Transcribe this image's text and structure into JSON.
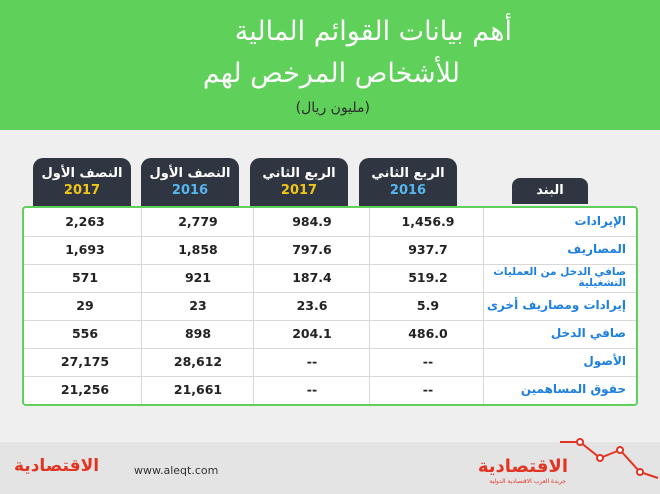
{
  "header": {
    "title_line1": "أهم بيانات القوائم المالية",
    "title_line2": "للأشخاص المرخص لهم",
    "unit": "(مليون ريال)"
  },
  "columns": [
    {
      "period": "النصف الأول",
      "year": "2017"
    },
    {
      "period": "النصف الأول",
      "year": "2016"
    },
    {
      "period": "الربع الثاني",
      "year": "2017"
    },
    {
      "period": "الربع الثاني",
      "year": "2016"
    }
  ],
  "item_header": "البند",
  "rows": [
    {
      "label": "الإيرادات",
      "values": [
        "2,263",
        "2,779",
        "984.9",
        "1,456.9"
      ]
    },
    {
      "label": "المصاريف",
      "values": [
        "1,693",
        "1,858",
        "797.6",
        "937.7"
      ]
    },
    {
      "label": "صافي الدخل من العمليات التشغيلية",
      "values": [
        "571",
        "921",
        "187.4",
        "519.2"
      ]
    },
    {
      "label": "إيرادات ومصاريف أخرى",
      "values": [
        "29",
        "23",
        "23.6",
        "5.9"
      ]
    },
    {
      "label": "صافي الدخل",
      "values": [
        "556",
        "898",
        "204.1",
        "486.0"
      ]
    },
    {
      "label": "الأصول",
      "values": [
        "27,175",
        "28,612",
        "--",
        "--"
      ]
    },
    {
      "label": "حقوق المساهمين",
      "values": [
        "21,256",
        "21,661",
        "--",
        "--"
      ]
    }
  ],
  "chart_data": {
    "type": "table",
    "title": "أهم بيانات القوائم المالية للأشخاص المرخص لهم",
    "unit": "(مليون ريال)",
    "columns": [
      "النصف الأول 2017",
      "النصف الأول 2016",
      "الربع الثاني 2017",
      "الربع الثاني 2016"
    ],
    "rows": [
      "الإيرادات",
      "المصاريف",
      "صافي الدخل من العمليات التشغيلية",
      "إيرادات ومصاريف أخرى",
      "صافي الدخل",
      "الأصول",
      "حقوق المساهمين"
    ]
  },
  "footer": {
    "logo_left": "الاقتصادية",
    "url": "www.aleqt.com",
    "logo_right": "الاقتصادية",
    "logo_sub": "جريدة العرب الاقتصادية الدولية"
  },
  "colors": {
    "green": "#5fd05a",
    "dark": "#2f3641",
    "y2016": "#56b6f0",
    "y2017": "#f0c419",
    "label_blue": "#1d7fe0",
    "brand_red": "#e33322"
  }
}
